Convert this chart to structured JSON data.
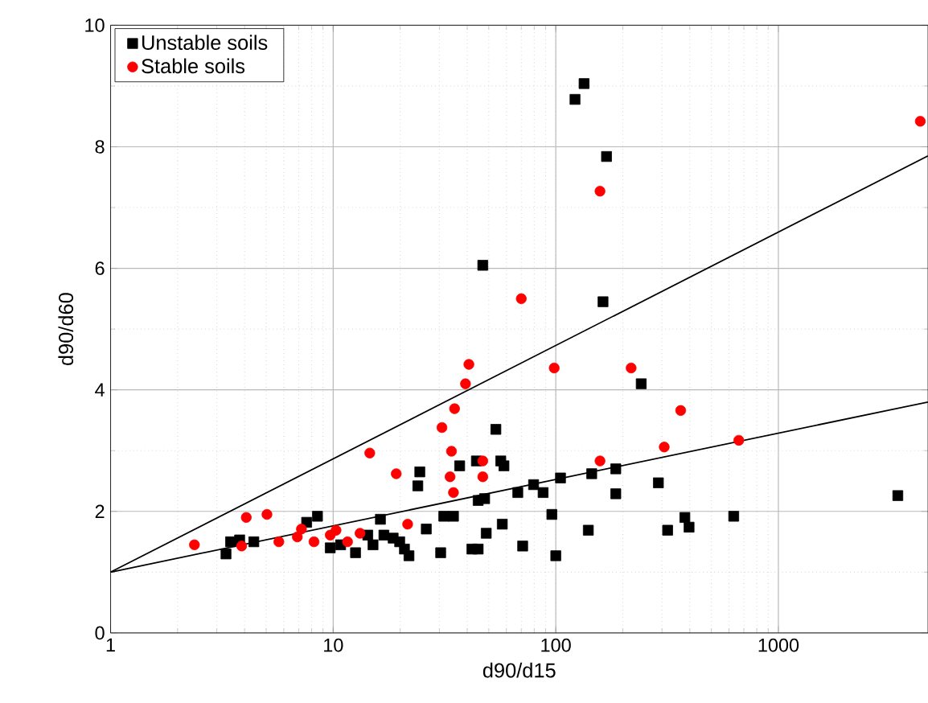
{
  "chart_data": {
    "type": "scatter",
    "xlabel": "d90/d15",
    "ylabel": "d90/d60",
    "log": "x",
    "grid": true,
    "legend": "top left",
    "xlim": [
      1,
      4700
    ],
    "xticks": [
      1,
      10,
      100,
      1000
    ],
    "ylim": [
      0,
      10
    ],
    "yticks": [
      0,
      2,
      4,
      6,
      8,
      10
    ],
    "series": [
      {
        "name": "Unstable soils",
        "color": "#000000",
        "marker": "square",
        "x": [
          3.3,
          3.46,
          3.8,
          4.4,
          7.6,
          8.5,
          9.7,
          10.8,
          12.6,
          14.3,
          15.1,
          16.3,
          16.9,
          18.6,
          19.9,
          20.9,
          21.9,
          26.2,
          30.4,
          31.4,
          34.7,
          24,
          24.5,
          42,
          44.8,
          44.8,
          47.9,
          48.7,
          57.5,
          53.8,
          37,
          44,
          56.6,
          58.5,
          67.5,
          79.5,
          87.7,
          105,
          145,
          186,
          186,
          96,
          140,
          71,
          100,
          242,
          134,
          122,
          169,
          163,
          47,
          289,
          318,
          380,
          397,
          630,
          3440
        ],
        "values": [
          1.3,
          1.5,
          1.53,
          1.5,
          1.82,
          1.92,
          1.4,
          1.45,
          1.32,
          1.61,
          1.45,
          1.87,
          1.61,
          1.56,
          1.5,
          1.38,
          1.27,
          1.71,
          1.32,
          1.92,
          1.92,
          2.42,
          2.65,
          1.38,
          1.38,
          2.18,
          2.21,
          1.64,
          1.79,
          3.35,
          2.75,
          2.83,
          2.83,
          2.75,
          2.31,
          2.44,
          2.31,
          2.55,
          2.62,
          2.7,
          2.29,
          1.95,
          1.69,
          1.43,
          1.27,
          4.1,
          9.04,
          8.78,
          7.84,
          5.45,
          6.05,
          2.47,
          1.69,
          1.9,
          1.74,
          1.92,
          2.26
        ]
      },
      {
        "name": "Stable soils",
        "color": "#ff0000",
        "marker": "circle",
        "x": [
          2.38,
          4.07,
          5.04,
          3.88,
          5.7,
          6.9,
          7.2,
          8.2,
          9.7,
          10.3,
          11.6,
          13.2,
          21.6,
          19.2,
          33.5,
          34.7,
          47,
          40.7,
          39.3,
          35.1,
          30.8,
          14.6,
          34,
          47,
          98.4,
          218,
          158,
          158,
          70,
          4340,
          364,
          307,
          664
        ],
        "values": [
          1.45,
          1.9,
          1.95,
          1.43,
          1.5,
          1.58,
          1.71,
          1.5,
          1.61,
          1.69,
          1.5,
          1.64,
          1.79,
          2.62,
          2.57,
          2.31,
          2.57,
          4.42,
          4.1,
          3.69,
          3.38,
          2.96,
          2.99,
          2.83,
          4.36,
          4.36,
          2.83,
          7.27,
          5.5,
          8.42,
          3.66,
          3.06,
          3.17
        ]
      },
      {
        "type": "line",
        "color": "#000000",
        "x": [
          1,
          4700
        ],
        "values": [
          1,
          7.85
        ]
      },
      {
        "type": "line",
        "color": "#000000",
        "x": [
          1,
          4700
        ],
        "values": [
          1,
          3.8
        ]
      }
    ]
  }
}
